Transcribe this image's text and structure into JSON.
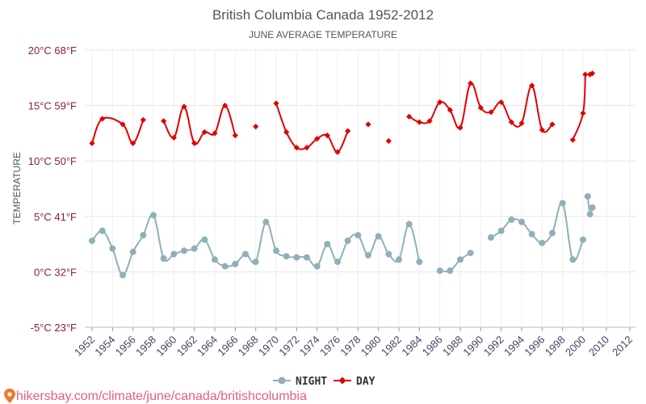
{
  "chart_data": {
    "type": "line",
    "title": "British Columbia Canada 1952-2012",
    "subtitle": "JUNE AVERAGE TEMPERATURE",
    "ylabel": "TEMPERATURE",
    "ylim": [
      -5,
      20
    ],
    "yticks": [
      {
        "value": -5,
        "label": "-5°C 23°F"
      },
      {
        "value": 0,
        "label": "0°C 32°F"
      },
      {
        "value": 5,
        "label": "5°C 41°F"
      },
      {
        "value": 10,
        "label": "10°C 50°F"
      },
      {
        "value": 15,
        "label": "15°C 59°F"
      },
      {
        "value": 20,
        "label": "20°C 68°F"
      }
    ],
    "xlim": [
      1952,
      2012
    ],
    "xticks": [
      "1952",
      "1954",
      "1956",
      "1958",
      "1960",
      "1962",
      "1964",
      "1966",
      "1968",
      "1970",
      "1972",
      "1974",
      "1976",
      "1978",
      "1980",
      "1982",
      "1984",
      "1986",
      "1988",
      "1990",
      "1992",
      "1994",
      "1996",
      "1998",
      "2000",
      "2010",
      "2012"
    ],
    "grid": true,
    "legend": "bottom-center",
    "series": [
      {
        "name": "NIGHT",
        "color": "#90b0b8",
        "marker": "circle",
        "x": [
          1952,
          1953,
          1954,
          1955,
          1956,
          1957,
          1958,
          1959,
          1960,
          1961,
          1962,
          1963,
          1964,
          1965,
          1966,
          1967,
          1968,
          1969,
          1970,
          1971,
          1972,
          1973,
          1974,
          1975,
          1976,
          1977,
          1978,
          1979,
          1980,
          1981,
          1982,
          1983,
          1984,
          1986,
          1987,
          1988,
          1989,
          1991,
          1992,
          1993,
          1994,
          1995,
          1996,
          1997,
          1998,
          1999,
          2000,
          2002,
          2003,
          2004
        ],
        "values": [
          2.8,
          3.7,
          2.1,
          -0.3,
          1.8,
          3.3,
          5.1,
          1.2,
          1.6,
          1.9,
          2.1,
          2.9,
          1.1,
          0.5,
          0.7,
          1.6,
          0.9,
          4.5,
          1.9,
          1.4,
          1.3,
          1.3,
          0.5,
          2.5,
          0.9,
          2.8,
          3.3,
          1.5,
          3.2,
          1.6,
          1.1,
          4.3,
          0.9,
          0.1,
          0.1,
          1.1,
          1.7,
          3.1,
          3.7,
          4.7,
          4.5,
          3.4,
          2.6,
          3.5,
          6.2,
          1.1,
          2.9,
          6.8,
          5.2,
          5.8
        ],
        "gaps_after": [
          1984,
          1989,
          2000
        ]
      },
      {
        "name": "DAY",
        "color": "#e00000",
        "marker": "diamond",
        "x": [
          1952,
          1953,
          1955,
          1956,
          1957,
          1959,
          1960,
          1961,
          1962,
          1963,
          1964,
          1965,
          1966,
          1968,
          1970,
          1971,
          1972,
          1973,
          1974,
          1975,
          1976,
          1977,
          1979,
          1981,
          1983,
          1984,
          1985,
          1986,
          1987,
          1988,
          1989,
          1990,
          1991,
          1992,
          1993,
          1994,
          1995,
          1996,
          1997,
          1999,
          2000,
          2001,
          2003,
          2004
        ],
        "values": [
          11.6,
          13.8,
          13.3,
          11.6,
          13.7,
          13.6,
          12.1,
          14.9,
          11.6,
          12.6,
          12.5,
          15.0,
          12.3,
          13.1,
          15.2,
          12.6,
          11.2,
          11.2,
          12.0,
          12.3,
          10.8,
          12.7,
          13.3,
          11.8,
          14.0,
          13.5,
          13.6,
          15.3,
          14.6,
          13.0,
          17.0,
          14.8,
          14.4,
          15.3,
          13.5,
          13.4,
          16.8,
          12.8,
          13.3,
          11.9,
          14.3,
          17.8,
          17.8,
          17.9
        ],
        "gaps_after": [
          1957,
          1966,
          1968,
          1977,
          1979,
          1981,
          1997,
          2001
        ]
      }
    ]
  },
  "footer": {
    "icon": "location-pin-icon",
    "text": "hikersbay.com/climate/june/canada/britishcolumbia"
  }
}
